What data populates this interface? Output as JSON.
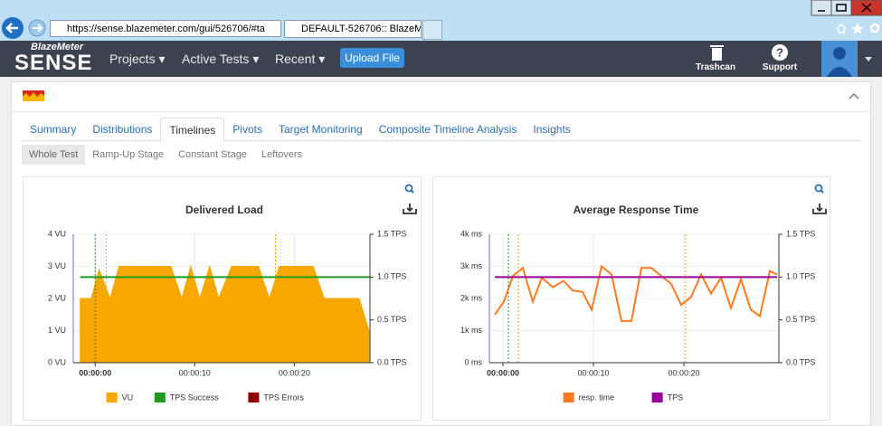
{
  "browser": {
    "url": "https://sense.blazemeter.com/gui/526706/#ta",
    "tab": "DEFAULT-526706:: BlazeMe..."
  },
  "app": {
    "brand_top": "BlazeMeter",
    "brand": "SENSE",
    "menu": [
      "Projects",
      "Active Tests",
      "Recent"
    ],
    "upload": "Upload File",
    "actions": [
      "Trashcan",
      "Support"
    ]
  },
  "tabs": [
    "Summary",
    "Distributions",
    "Timelines",
    "Pivots",
    "Target Monitoring",
    "Composite Timeline Analysis",
    "Insights"
  ],
  "active_tab": 2,
  "subtabs": [
    "Whole Test",
    "Ramp-Up Stage",
    "Constant Stage",
    "Leftovers"
  ],
  "active_subtab": 0,
  "chart_data": [
    {
      "type": "line",
      "title": "Delivered Load",
      "grid": true,
      "xlim": [
        -2.2,
        27.6
      ],
      "xticks": [
        {
          "value": 0,
          "label": "00:00:00"
        },
        {
          "value": 10,
          "label": "00:00:10"
        },
        {
          "value": 20,
          "label": "00:00:20"
        }
      ],
      "ylim": [
        0,
        4
      ],
      "yticks": [
        {
          "value": 0,
          "label": "0 VU"
        },
        {
          "value": 1,
          "label": "1 VU"
        },
        {
          "value": 2,
          "label": "2 VU"
        },
        {
          "value": 3,
          "label": "3 VU"
        },
        {
          "value": 4,
          "label": "4 VU"
        }
      ],
      "y2lim": [
        0,
        1.5
      ],
      "y2ticks": [
        {
          "value": 0,
          "label": "0.0 TPS"
        },
        {
          "value": 0.5,
          "label": "0.5 TPS"
        },
        {
          "value": 1,
          "label": "1.0 TPS"
        },
        {
          "value": 1.5,
          "label": "1.5 TPS"
        }
      ],
      "series": [
        {
          "name": "VU",
          "color": "#f7a800",
          "kind": "area",
          "x": [
            -1.5,
            -0.4,
            0.4,
            1.5,
            2.4,
            7.6,
            8.7,
            9.6,
            10.5,
            11.5,
            12.4,
            13.7,
            16.4,
            17.5,
            18.5,
            21.9,
            23,
            26.5,
            27.5
          ],
          "values": [
            2,
            2,
            2.9,
            2,
            3,
            3,
            2,
            3,
            2,
            3,
            2,
            3,
            3,
            2,
            3,
            3,
            2,
            2,
            1
          ]
        },
        {
          "name": "TPS Success",
          "color": "#1f9a1f",
          "axis": "y2",
          "x": [
            -1.5,
            27.6
          ],
          "values": [
            1,
            1
          ]
        },
        {
          "name": "TPS Errors",
          "color": "#8b0000",
          "axis": "y2",
          "x": [],
          "values": []
        }
      ],
      "markers": [
        {
          "x": 0,
          "color": "#1f9a1f"
        },
        {
          "x": 1.1,
          "color": "#f7a800"
        },
        {
          "x": 18.1,
          "color": "#f7a800"
        }
      ]
    },
    {
      "type": "line",
      "title": "Average Response Time",
      "grid": true,
      "xlim": [
        -1.5,
        30.5
      ],
      "xticks": [
        {
          "value": 0,
          "label": "00:00:00"
        },
        {
          "value": 10,
          "label": "00:00:10"
        },
        {
          "value": 20,
          "label": "00:00:20"
        }
      ],
      "ylim": [
        0,
        4000
      ],
      "yticks": [
        {
          "value": 0,
          "label": "0 ms"
        },
        {
          "value": 1000,
          "label": "1k ms"
        },
        {
          "value": 2000,
          "label": "2k ms"
        },
        {
          "value": 3000,
          "label": "3k ms"
        },
        {
          "value": 4000,
          "label": "4k ms"
        }
      ],
      "y2lim": [
        0,
        1.5
      ],
      "y2ticks": [
        {
          "value": 0,
          "label": "0.0 TPS"
        },
        {
          "value": 0.5,
          "label": "0.5 TPS"
        },
        {
          "value": 1,
          "label": "1.0 TPS"
        },
        {
          "value": 1.5,
          "label": "1.5 TPS"
        }
      ],
      "series": [
        {
          "name": "resp. time",
          "color": "#ff7a1f",
          "x": [
            -0.9,
            0.1,
            1.1,
            2.2,
            3.3,
            4.3,
            5.5,
            6.7,
            7.7,
            8.8,
            9.8,
            10.9,
            12,
            13.1,
            14.2,
            15.3,
            16.4,
            17.5,
            18.6,
            19.7,
            20.8,
            21.9,
            23,
            24.1,
            25.2,
            26.3,
            27.4,
            28.4,
            29.5,
            30.3
          ],
          "values": [
            1500,
            1900,
            2700,
            2950,
            1900,
            2650,
            2350,
            2550,
            2250,
            2200,
            1650,
            3000,
            2750,
            1300,
            1300,
            2950,
            2950,
            2700,
            2450,
            1800,
            2050,
            2750,
            2150,
            2650,
            1700,
            2600,
            1650,
            1450,
            2850,
            2750
          ]
        },
        {
          "name": "TPS",
          "color": "#990099",
          "axis": "y2",
          "x": [
            -0.9,
            30.3
          ],
          "values": [
            1,
            1
          ]
        }
      ],
      "markers": [
        {
          "x": 0.6,
          "color": "#1f9a1f"
        },
        {
          "x": 1.7,
          "color": "#f7a800"
        },
        {
          "x": 20.2,
          "color": "#f7a800"
        }
      ]
    }
  ]
}
